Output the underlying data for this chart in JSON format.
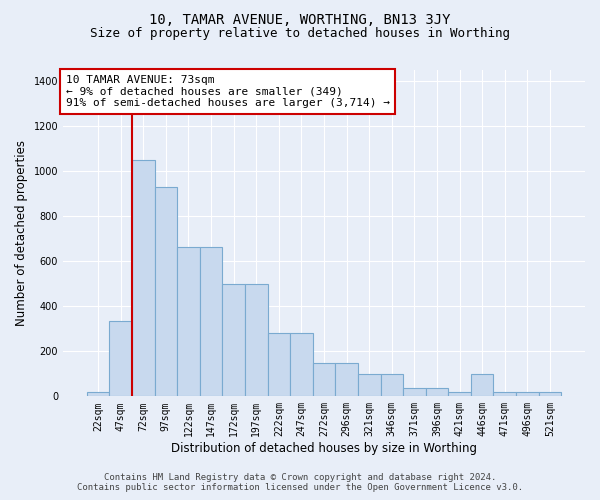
{
  "title": "10, TAMAR AVENUE, WORTHING, BN13 3JY",
  "subtitle": "Size of property relative to detached houses in Worthing",
  "xlabel": "Distribution of detached houses by size in Worthing",
  "ylabel": "Number of detached properties",
  "categories": [
    "22sqm",
    "47sqm",
    "72sqm",
    "97sqm",
    "122sqm",
    "147sqm",
    "172sqm",
    "197sqm",
    "222sqm",
    "247sqm",
    "272sqm",
    "296sqm",
    "321sqm",
    "346sqm",
    "371sqm",
    "396sqm",
    "421sqm",
    "446sqm",
    "471sqm",
    "496sqm",
    "521sqm"
  ],
  "values": [
    20,
    335,
    1050,
    930,
    665,
    665,
    500,
    500,
    280,
    280,
    150,
    150,
    100,
    100,
    35,
    35,
    20,
    100,
    20,
    20,
    20
  ],
  "bar_color": "#c8d9ee",
  "bar_edge_color": "#7aaad0",
  "background_color": "#e8eef8",
  "grid_color": "#ffffff",
  "annotation_box_color": "#ffffff",
  "annotation_border_color": "#cc0000",
  "vline_color": "#cc0000",
  "vline_x_index": 2,
  "annotation_title": "10 TAMAR AVENUE: 73sqm",
  "annotation_line1": "← 9% of detached houses are smaller (349)",
  "annotation_line2": "91% of semi-detached houses are larger (3,714) →",
  "ylim": [
    0,
    1450
  ],
  "yticks": [
    0,
    200,
    400,
    600,
    800,
    1000,
    1200,
    1400
  ],
  "footer_line1": "Contains HM Land Registry data © Crown copyright and database right 2024.",
  "footer_line2": "Contains public sector information licensed under the Open Government Licence v3.0.",
  "title_fontsize": 10,
  "subtitle_fontsize": 9,
  "axis_label_fontsize": 8.5,
  "tick_fontsize": 7,
  "annotation_fontsize": 8,
  "footer_fontsize": 6.5
}
